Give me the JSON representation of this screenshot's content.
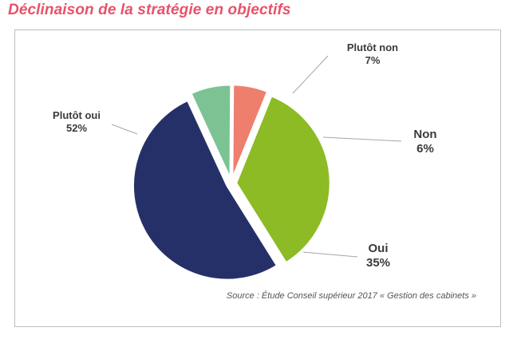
{
  "title": "Déclinaison de la stratégie en objectifs",
  "source": "Source : Étude Conseil supérieur 2017 « Gestion des cabinets »",
  "colors": {
    "title": "#e8526a",
    "oui": "#8cbb26",
    "plutot_oui": "#263068",
    "plutot_non": "#7cc394",
    "non": "#ee7f6d",
    "leader": "#a6a6a6"
  },
  "chart_data": {
    "type": "pie",
    "title": "Déclinaison de la stratégie en objectifs",
    "legend": "none",
    "slices": [
      {
        "name": "Oui",
        "value": 35,
        "label": "35%",
        "color": "#8cbb26"
      },
      {
        "name": "Plutôt oui",
        "value": 52,
        "label": "52%",
        "color": "#263068"
      },
      {
        "name": "Plutôt non",
        "value": 7,
        "label": "7%",
        "color": "#7cc394"
      },
      {
        "name": "Non",
        "value": 6,
        "label": "6%",
        "color": "#ee7f6d"
      }
    ]
  }
}
